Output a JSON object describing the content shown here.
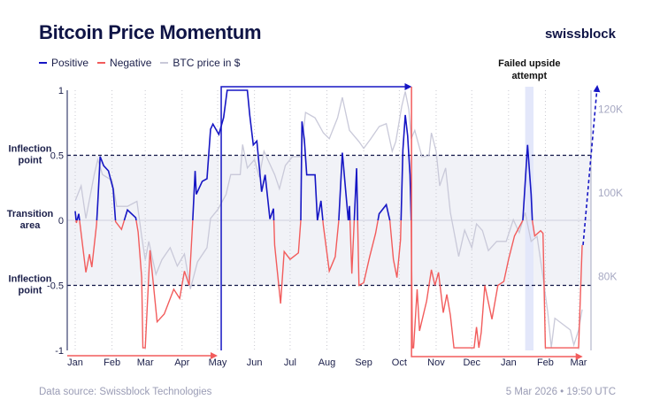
{
  "header": {
    "title": "Bitcoin Price Momentum",
    "brand": "swissblock"
  },
  "legend": [
    {
      "label": "Positive",
      "color": "#1616c4"
    },
    {
      "label": "Negative",
      "color": "#f25c5c"
    },
    {
      "label": "BTC price in $",
      "color": "#c9c9d9"
    }
  ],
  "footer": {
    "source": "Data source: Swissblock Technologies",
    "timestamp": "5 Mar 2026 • 19:50 UTC"
  },
  "chart_data": {
    "type": "line",
    "title": "Bitcoin Price Momentum",
    "ylim": [
      -1,
      1
    ],
    "y2lim": [
      62300,
      124600
    ],
    "left_ticks": [
      "1",
      "0.5",
      "0",
      "-0.5",
      "-1"
    ],
    "left_tick_values": [
      1,
      0.5,
      0,
      -0.5,
      -1
    ],
    "left_labels": [
      {
        "text": [
          "Inflection",
          "point"
        ],
        "value": 0.5
      },
      {
        "text": [
          "Transition",
          "area"
        ],
        "value": 0
      },
      {
        "text": [
          "Inflection",
          "point"
        ],
        "value": -0.5
      }
    ],
    "right_ticks": [
      {
        "label": "120K",
        "value": 120000
      },
      {
        "label": "100K",
        "value": 100000
      },
      {
        "label": "80K",
        "value": 80000
      }
    ],
    "x_ticks": [
      {
        "label": "Jan",
        "date": "2025-01-01"
      },
      {
        "label": "Feb",
        "date": "2025-02-01"
      },
      {
        "label": "Mar",
        "date": "2025-03-01"
      },
      {
        "label": "Apr",
        "date": "2025-04-01"
      },
      {
        "label": "May",
        "date": "2025-05-01"
      },
      {
        "label": "Jun",
        "date": "2025-06-01"
      },
      {
        "label": "Jul",
        "date": "2025-07-01"
      },
      {
        "label": "Aug",
        "date": "2025-08-01"
      },
      {
        "label": "Sep",
        "date": "2025-09-01"
      },
      {
        "label": "Oct",
        "date": "2025-10-01"
      },
      {
        "label": "Nov",
        "date": "2025-11-01"
      },
      {
        "label": "Dec",
        "date": "2025-12-01"
      },
      {
        "label": "Jan",
        "date": "2026-01-01"
      },
      {
        "label": "Feb",
        "date": "2026-02-01"
      },
      {
        "label": "Mar",
        "date": "2026-03-01"
      }
    ],
    "shaded_band": [
      -0.5,
      0.5
    ],
    "grid": "vertical dotted at months",
    "annotation": {
      "text": [
        "Failed upside",
        "attempt"
      ],
      "range": [
        "2026-01-15",
        "2026-01-22"
      ]
    },
    "regime_arrows": [
      {
        "color": "#f25c5c",
        "from": "2025-01-01",
        "to": "2025-05-01"
      },
      {
        "color": "#1616c4",
        "from": "2025-05-01",
        "to": "2025-10-10"
      },
      {
        "color": "#f25c5c",
        "from": "2025-10-12",
        "to": "2026-03-03"
      }
    ],
    "momentum": [
      [
        "2025-01-01",
        0.07
      ],
      [
        "2025-01-02",
        -0.02
      ],
      [
        "2025-01-04",
        0.05
      ],
      [
        "2025-01-10",
        -0.4
      ],
      [
        "2025-01-13",
        -0.26
      ],
      [
        "2025-01-15",
        -0.36
      ],
      [
        "2025-01-19",
        -0.03
      ],
      [
        "2025-01-20",
        0.13
      ],
      [
        "2025-01-22",
        0.49
      ],
      [
        "2025-01-25",
        0.42
      ],
      [
        "2025-01-29",
        0.38
      ],
      [
        "2025-02-02",
        0.24
      ],
      [
        "2025-02-04",
        -0.01
      ],
      [
        "2025-02-09",
        -0.07
      ],
      [
        "2025-02-14",
        0.08
      ],
      [
        "2025-02-21",
        0.02
      ],
      [
        "2025-02-23",
        -0.09
      ],
      [
        "2025-02-26",
        -0.44
      ],
      [
        "2025-02-27",
        -0.98
      ],
      [
        "2025-03-01",
        -0.98
      ],
      [
        "2025-03-05",
        -0.23
      ],
      [
        "2025-03-11",
        -0.78
      ],
      [
        "2025-03-17",
        -0.72
      ],
      [
        "2025-03-25",
        -0.53
      ],
      [
        "2025-03-30",
        -0.6
      ],
      [
        "2025-04-03",
        -0.39
      ],
      [
        "2025-04-07",
        -0.5
      ],
      [
        "2025-04-10",
        0.0
      ],
      [
        "2025-04-12",
        0.38
      ],
      [
        "2025-04-13",
        0.2
      ],
      [
        "2025-04-18",
        0.3
      ],
      [
        "2025-04-22",
        0.32
      ],
      [
        "2025-04-25",
        0.7
      ],
      [
        "2025-04-27",
        0.74
      ],
      [
        "2025-05-02",
        0.66
      ],
      [
        "2025-05-06",
        0.79
      ],
      [
        "2025-05-09",
        1.0
      ],
      [
        "2025-05-26",
        1.0
      ],
      [
        "2025-05-28",
        0.81
      ],
      [
        "2025-05-31",
        0.58
      ],
      [
        "2025-06-03",
        0.61
      ],
      [
        "2025-06-07",
        0.22
      ],
      [
        "2025-06-10",
        0.35
      ],
      [
        "2025-06-14",
        0.01
      ],
      [
        "2025-06-17",
        0.09
      ],
      [
        "2025-06-18",
        -0.19
      ],
      [
        "2025-06-23",
        -0.64
      ],
      [
        "2025-06-26",
        -0.24
      ],
      [
        "2025-07-01",
        -0.3
      ],
      [
        "2025-07-08",
        -0.25
      ],
      [
        "2025-07-10",
        0.0
      ],
      [
        "2025-07-11",
        0.76
      ],
      [
        "2025-07-13",
        0.62
      ],
      [
        "2025-07-15",
        0.35
      ],
      [
        "2025-07-22",
        0.35
      ],
      [
        "2025-07-24",
        0.0
      ],
      [
        "2025-07-27",
        0.15
      ],
      [
        "2025-07-29",
        -0.04
      ],
      [
        "2025-08-03",
        -0.39
      ],
      [
        "2025-08-08",
        -0.28
      ],
      [
        "2025-08-11",
        0.0
      ],
      [
        "2025-08-14",
        0.52
      ],
      [
        "2025-08-19",
        0.0
      ],
      [
        "2025-08-20",
        0.11
      ],
      [
        "2025-08-22",
        -0.41
      ],
      [
        "2025-08-26",
        0.4
      ],
      [
        "2025-08-28",
        -0.5
      ],
      [
        "2025-09-01",
        -0.48
      ],
      [
        "2025-09-06",
        -0.28
      ],
      [
        "2025-09-11",
        -0.1
      ],
      [
        "2025-09-14",
        0.05
      ],
      [
        "2025-09-20",
        0.12
      ],
      [
        "2025-09-23",
        0.0
      ],
      [
        "2025-09-26",
        -0.3
      ],
      [
        "2025-09-29",
        -0.44
      ],
      [
        "2025-10-02",
        -0.15
      ],
      [
        "2025-10-04",
        0.54
      ],
      [
        "2025-10-06",
        0.81
      ],
      [
        "2025-10-08",
        0.65
      ],
      [
        "2025-10-10",
        0.35
      ],
      [
        "2025-10-11",
        0.0
      ],
      [
        "2025-10-12",
        -0.98
      ],
      [
        "2025-10-13",
        -0.98
      ],
      [
        "2025-10-16",
        -0.53
      ],
      [
        "2025-10-18",
        -0.85
      ],
      [
        "2025-10-24",
        -0.62
      ],
      [
        "2025-10-28",
        -0.38
      ],
      [
        "2025-10-31",
        -0.5
      ],
      [
        "2025-11-03",
        -0.4
      ],
      [
        "2025-11-07",
        -0.71
      ],
      [
        "2025-11-10",
        -0.57
      ],
      [
        "2025-11-13",
        -0.73
      ],
      [
        "2025-11-16",
        -0.98
      ],
      [
        "2025-12-03",
        -0.98
      ],
      [
        "2025-12-05",
        -0.82
      ],
      [
        "2025-12-07",
        -0.98
      ],
      [
        "2025-12-09",
        -0.86
      ],
      [
        "2025-12-12",
        -0.5
      ],
      [
        "2025-12-18",
        -0.76
      ],
      [
        "2025-12-23",
        -0.5
      ],
      [
        "2025-12-28",
        -0.47
      ],
      [
        "2026-01-01",
        -0.3
      ],
      [
        "2026-01-06",
        -0.12
      ],
      [
        "2026-01-13",
        0.0
      ],
      [
        "2026-01-17",
        0.58
      ],
      [
        "2026-01-20",
        0.2
      ],
      [
        "2026-01-21",
        0.0
      ],
      [
        "2026-01-23",
        -0.12
      ],
      [
        "2026-01-28",
        -0.08
      ],
      [
        "2026-01-30",
        -0.1
      ],
      [
        "2026-02-01",
        -0.98
      ],
      [
        "2026-03-01",
        -0.98
      ],
      [
        "2026-03-04",
        -0.19
      ]
    ],
    "price": [
      [
        "2025-01-01",
        98100
      ],
      [
        "2025-01-06",
        101700
      ],
      [
        "2025-01-10",
        93900
      ],
      [
        "2025-01-17",
        104400
      ],
      [
        "2025-01-20",
        108000
      ],
      [
        "2025-01-24",
        104400
      ],
      [
        "2025-02-01",
        103000
      ],
      [
        "2025-02-05",
        96800
      ],
      [
        "2025-02-14",
        96800
      ],
      [
        "2025-02-22",
        98000
      ],
      [
        "2025-02-26",
        89600
      ],
      [
        "2025-03-01",
        84000
      ],
      [
        "2025-03-04",
        88400
      ],
      [
        "2025-03-10",
        80500
      ],
      [
        "2025-03-15",
        84000
      ],
      [
        "2025-03-22",
        86900
      ],
      [
        "2025-03-28",
        82500
      ],
      [
        "2025-04-03",
        85400
      ],
      [
        "2025-04-08",
        77000
      ],
      [
        "2025-04-14",
        83500
      ],
      [
        "2025-04-22",
        86900
      ],
      [
        "2025-04-25",
        93900
      ],
      [
        "2025-05-01",
        96000
      ],
      [
        "2025-05-08",
        99600
      ],
      [
        "2025-05-12",
        104400
      ],
      [
        "2025-05-20",
        104400
      ],
      [
        "2025-05-22",
        111600
      ],
      [
        "2025-05-26",
        106000
      ],
      [
        "2025-06-01",
        108000
      ],
      [
        "2025-06-05",
        103800
      ],
      [
        "2025-06-09",
        110000
      ],
      [
        "2025-06-18",
        104400
      ],
      [
        "2025-06-22",
        101000
      ],
      [
        "2025-06-27",
        106600
      ],
      [
        "2025-07-03",
        108700
      ],
      [
        "2025-07-10",
        108700
      ],
      [
        "2025-07-14",
        119300
      ],
      [
        "2025-07-22",
        118000
      ],
      [
        "2025-07-29",
        114400
      ],
      [
        "2025-08-03",
        113000
      ],
      [
        "2025-08-10",
        118000
      ],
      [
        "2025-08-14",
        122900
      ],
      [
        "2025-08-20",
        115000
      ],
      [
        "2025-08-28",
        112300
      ],
      [
        "2025-09-01",
        110700
      ],
      [
        "2025-09-07",
        113000
      ],
      [
        "2025-09-14",
        115900
      ],
      [
        "2025-09-20",
        116600
      ],
      [
        "2025-09-25",
        110000
      ],
      [
        "2025-09-28",
        112300
      ],
      [
        "2025-10-03",
        120700
      ],
      [
        "2025-10-06",
        124300
      ],
      [
        "2025-10-09",
        120000
      ],
      [
        "2025-10-11",
        113000
      ],
      [
        "2025-10-14",
        115000
      ],
      [
        "2025-10-20",
        108700
      ],
      [
        "2025-10-26",
        108900
      ],
      [
        "2025-10-28",
        114400
      ],
      [
        "2025-11-01",
        110000
      ],
      [
        "2025-11-04",
        101700
      ],
      [
        "2025-11-09",
        106000
      ],
      [
        "2025-11-13",
        95300
      ],
      [
        "2025-11-20",
        84800
      ],
      [
        "2025-11-25",
        91100
      ],
      [
        "2025-12-01",
        86900
      ],
      [
        "2025-12-05",
        92600
      ],
      [
        "2025-12-10",
        91000
      ],
      [
        "2025-12-15",
        86200
      ],
      [
        "2025-12-22",
        88400
      ],
      [
        "2025-12-30",
        88400
      ],
      [
        "2026-01-05",
        93600
      ],
      [
        "2026-01-10",
        90500
      ],
      [
        "2026-01-15",
        95300
      ],
      [
        "2026-01-20",
        88400
      ],
      [
        "2026-01-25",
        89600
      ],
      [
        "2026-01-30",
        79900
      ],
      [
        "2026-02-03",
        71400
      ],
      [
        "2026-02-06",
        63000
      ],
      [
        "2026-02-09",
        70000
      ],
      [
        "2026-02-16",
        68500
      ],
      [
        "2026-02-22",
        67200
      ],
      [
        "2026-02-25",
        63600
      ],
      [
        "2026-03-01",
        67200
      ],
      [
        "2026-03-04",
        72100
      ]
    ]
  }
}
